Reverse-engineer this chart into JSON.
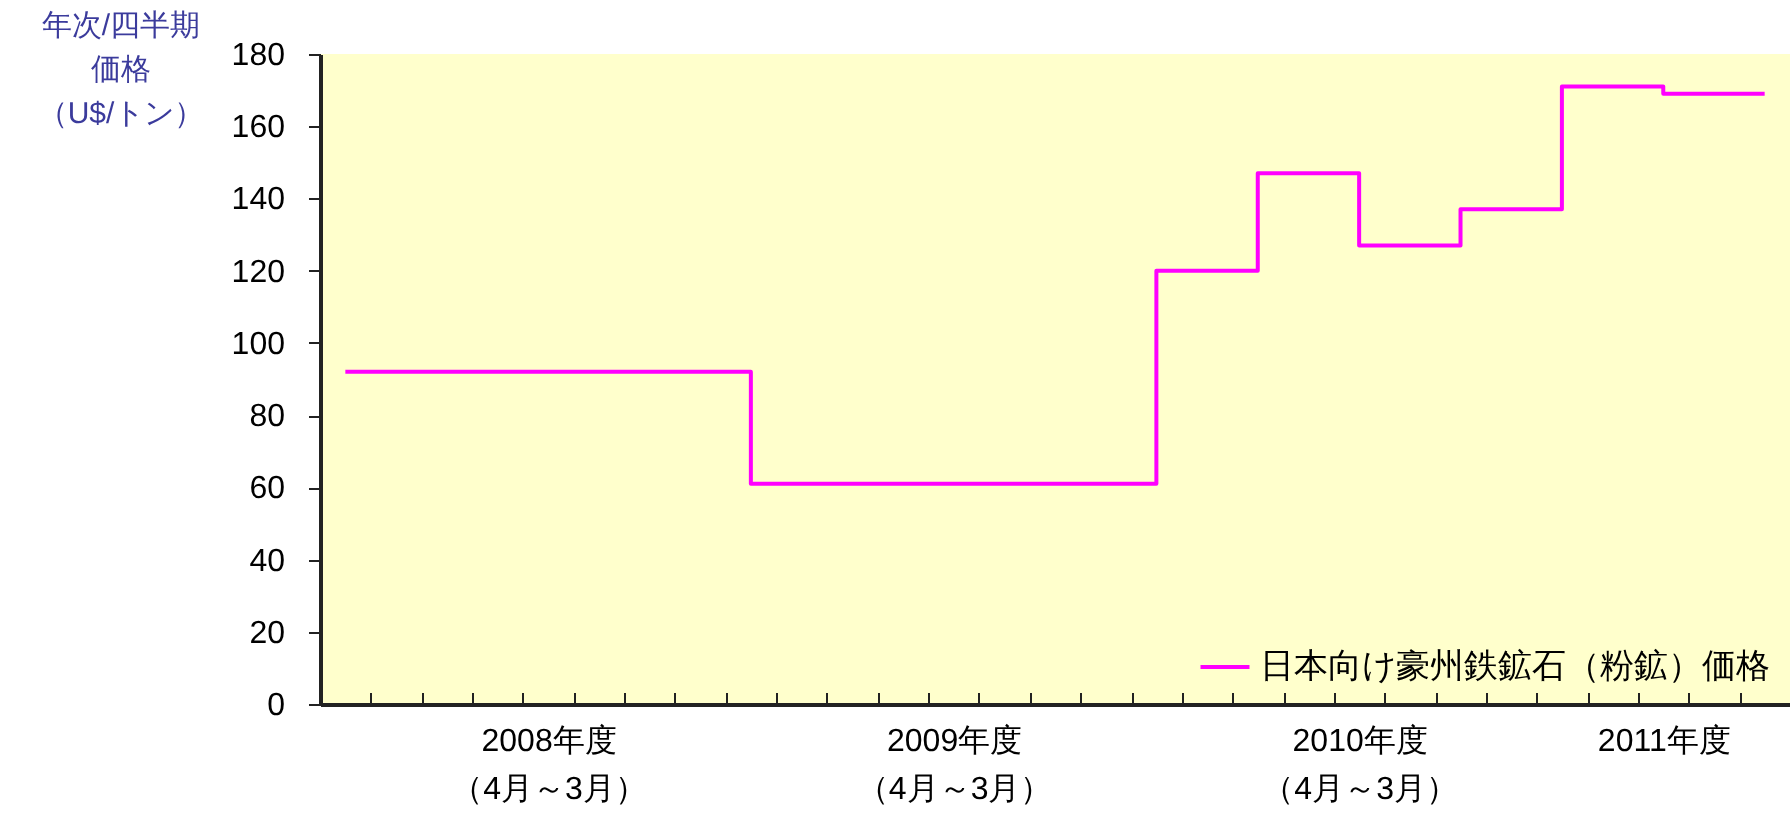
{
  "chart_data": {
    "type": "step",
    "ylabel": "年次/四半期価格（U$/トン）",
    "categories": [
      null,
      null,
      null,
      null,
      "2008年度（4月～3月）",
      null,
      null,
      null,
      null,
      null,
      null,
      null,
      "2009年度（4月～3月）",
      null,
      null,
      null,
      null,
      null,
      null,
      null,
      "2010年度（4月～3月）",
      null,
      null,
      null,
      null,
      null,
      "2011年度",
      null,
      null
    ],
    "series": [
      {
        "name": "日本向け豪州鉄鉱石（粉鉱）価格",
        "color": "#ff00ff",
        "values": [
          92,
          92,
          92,
          92,
          92,
          92,
          92,
          92,
          61,
          61,
          61,
          61,
          61,
          61,
          61,
          61,
          120,
          120,
          147,
          147,
          127,
          127,
          137,
          137,
          171,
          171,
          169,
          169,
          169
        ]
      }
    ],
    "ylim": [
      0,
      180
    ],
    "yticks": [
      0,
      20,
      40,
      60,
      80,
      100,
      120,
      140,
      160,
      180
    ],
    "grid": false,
    "legend": "bottom right",
    "marker": "none",
    "line_style": "solid"
  }
}
